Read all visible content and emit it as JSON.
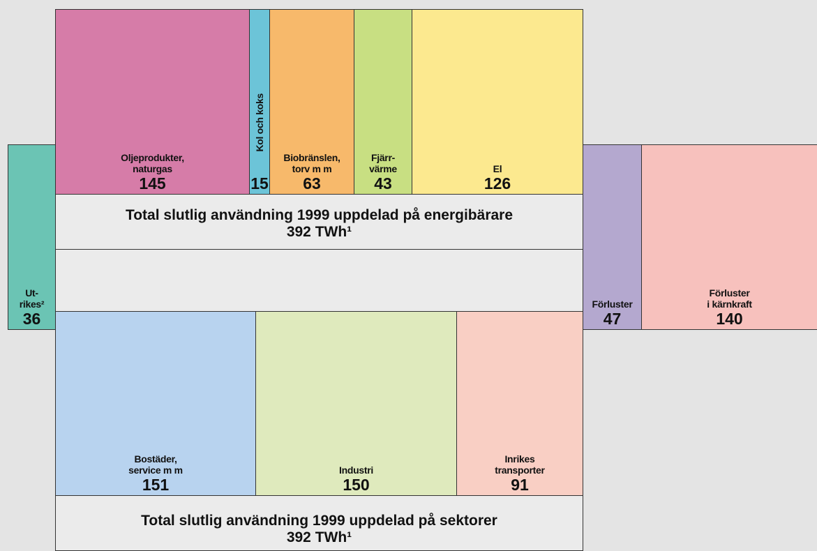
{
  "energy_carriers": {
    "items": [
      {
        "label": [
          "Oljeprodukter,",
          "naturgas"
        ],
        "value": 145
      },
      {
        "label": [
          "Kol och koks"
        ],
        "value": 15
      },
      {
        "label": [
          "Biobränslen,",
          "torv m m"
        ],
        "value": 63
      },
      {
        "label": [
          "Fjärr-",
          "värme"
        ],
        "value": 43
      },
      {
        "label": [
          "El"
        ],
        "value": 126
      }
    ],
    "total": {
      "title": "Total slutlig användning 1999 uppdelad på energibärare",
      "value": "392 TWh¹"
    }
  },
  "foreign": {
    "label": [
      "Ut-",
      "rikes²"
    ],
    "value": 36
  },
  "losses": {
    "label": [
      "Förluster"
    ],
    "value": 47
  },
  "nuclear_losses": {
    "label": [
      "Förluster",
      "i kärnkraft"
    ],
    "value": 140
  },
  "sectors": {
    "items": [
      {
        "label": [
          "Bostäder,",
          "service m m"
        ],
        "value": 151
      },
      {
        "label": [
          "Industri"
        ],
        "value": 150
      },
      {
        "label": [
          "Inrikes",
          "transporter"
        ],
        "value": 91
      }
    ],
    "total": {
      "title": "Total slutlig användning 1999 uppdelad på sektorer",
      "value": "392 TWh¹"
    }
  }
}
